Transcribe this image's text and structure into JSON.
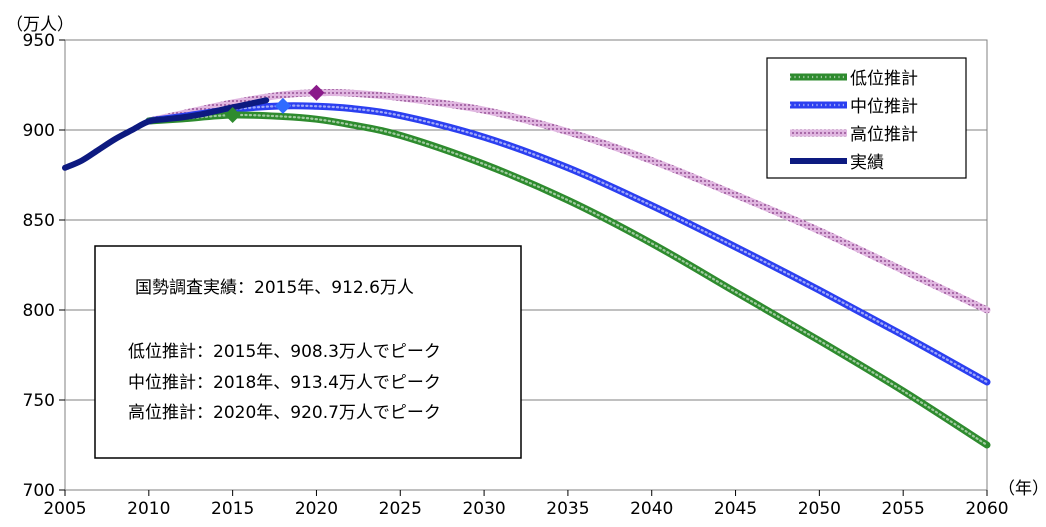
{
  "chart_data": {
    "type": "line",
    "y_unit_label": "（万人）",
    "x_unit_label": "（年）",
    "xlim": [
      2005,
      2060
    ],
    "ylim": [
      700,
      950
    ],
    "x_ticks": [
      2005,
      2010,
      2015,
      2020,
      2025,
      2030,
      2035,
      2040,
      2045,
      2050,
      2055,
      2060
    ],
    "y_ticks": [
      700,
      750,
      800,
      850,
      900,
      950
    ],
    "grid": "horizontal",
    "legend_position": "top-right",
    "series": [
      {
        "name": "低位推計",
        "color": "#2e8b2e",
        "style": "dotted-thick",
        "points": [
          [
            2010,
            905.0
          ],
          [
            2012,
            906.2
          ],
          [
            2015,
            908.3
          ],
          [
            2018,
            907.5
          ],
          [
            2020,
            906.0
          ],
          [
            2022,
            903.0
          ],
          [
            2025,
            897.0
          ],
          [
            2030,
            881.0
          ],
          [
            2035,
            861.0
          ],
          [
            2040,
            837.0
          ],
          [
            2045,
            810.0
          ],
          [
            2050,
            783.0
          ],
          [
            2055,
            755.0
          ],
          [
            2060,
            725.0
          ]
        ],
        "peak": {
          "x": 2015,
          "y": 908.3
        }
      },
      {
        "name": "中位推計",
        "color": "#2b3ff0",
        "style": "dotted-thick",
        "points": [
          [
            2010,
            905.0
          ],
          [
            2012,
            907.5
          ],
          [
            2015,
            911.5
          ],
          [
            2018,
            913.4
          ],
          [
            2020,
            913.2
          ],
          [
            2022,
            912.0
          ],
          [
            2025,
            908.0
          ],
          [
            2030,
            896.0
          ],
          [
            2035,
            879.0
          ],
          [
            2040,
            858.0
          ],
          [
            2045,
            835.0
          ],
          [
            2050,
            811.0
          ],
          [
            2055,
            786.0
          ],
          [
            2060,
            760.0
          ]
        ],
        "peak": {
          "x": 2018,
          "y": 913.4
        }
      },
      {
        "name": "高位推計",
        "color": "#c98bc9",
        "style": "hatched-thick",
        "points": [
          [
            2010,
            905.0
          ],
          [
            2012,
            909.0
          ],
          [
            2015,
            915.0
          ],
          [
            2018,
            919.5
          ],
          [
            2020,
            920.7
          ],
          [
            2022,
            920.5
          ],
          [
            2025,
            918.0
          ],
          [
            2030,
            911.0
          ],
          [
            2035,
            899.0
          ],
          [
            2040,
            883.0
          ],
          [
            2045,
            864.0
          ],
          [
            2050,
            844.0
          ],
          [
            2055,
            822.0
          ],
          [
            2060,
            800.0
          ]
        ],
        "peak": {
          "x": 2020,
          "y": 920.7
        }
      },
      {
        "name": "実績",
        "color": "#0d1a80",
        "style": "solid-thick",
        "points": [
          [
            2005,
            879.0
          ],
          [
            2006,
            883.0
          ],
          [
            2007,
            889.0
          ],
          [
            2008,
            895.0
          ],
          [
            2009,
            900.0
          ],
          [
            2010,
            904.8
          ],
          [
            2011,
            906.0
          ],
          [
            2012,
            907.0
          ],
          [
            2013,
            908.5
          ],
          [
            2014,
            910.5
          ],
          [
            2015,
            912.6
          ],
          [
            2016,
            914.5
          ],
          [
            2017,
            916.5
          ]
        ]
      }
    ],
    "annotation": {
      "lines": [
        "国勢調査実績：2015年、912.6万人",
        "",
        "低位推計：2015年、908.3万人でピーク",
        "中位推計：2018年、913.4万人でピーク",
        "高位推計：2020年、920.7万人でピーク"
      ]
    }
  }
}
